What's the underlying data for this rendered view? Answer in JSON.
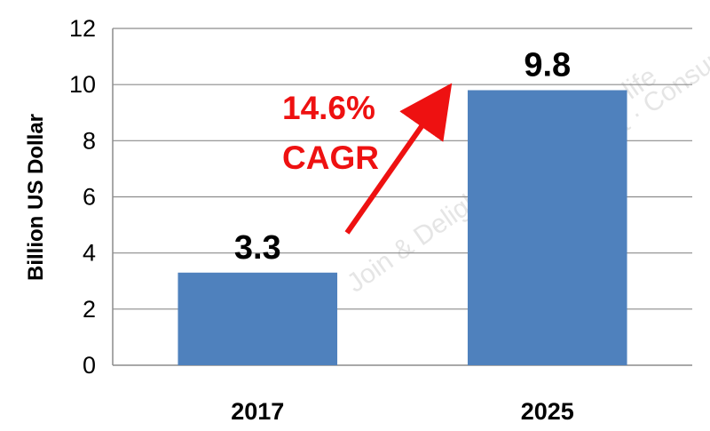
{
  "chart_data": {
    "type": "bar",
    "categories": [
      "2017",
      "2025"
    ],
    "values": [
      3.3,
      9.8
    ],
    "data_labels": [
      "3.3",
      "9.8"
    ],
    "ylabel": "Billion US Dollar",
    "xlabel": "",
    "ylim": [
      0,
      12
    ],
    "yticks": [
      "0",
      "2",
      "4",
      "6",
      "8",
      "10",
      "12"
    ],
    "grid": true,
    "bar_color": "#4f81bd",
    "annotation": {
      "lines": [
        "14.6%",
        "CAGR"
      ],
      "color": "#ee1111"
    }
  },
  "watermark": {
    "text": "Join & Delight · Consumer's life",
    "color": "#cccccc"
  }
}
